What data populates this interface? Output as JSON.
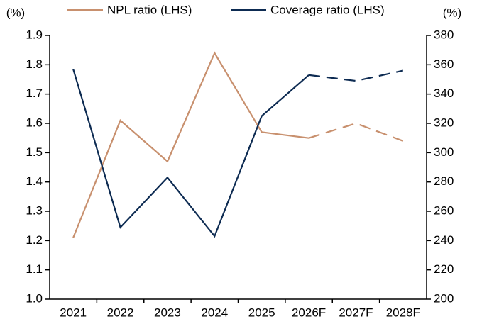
{
  "chart_data": {
    "type": "line",
    "y_label": "(%)",
    "y2_label": "(%)",
    "categories": [
      "2021",
      "2022",
      "2023",
      "2024",
      "2025",
      "2026F",
      "2027F",
      "2028F"
    ],
    "dash_start_index": 5,
    "series": [
      {
        "name": "NPL ratio (LHS)",
        "color": "#c8906e",
        "values": [
          1.21,
          1.61,
          1.47,
          1.84,
          1.57,
          1.55,
          1.6,
          1.54
        ]
      },
      {
        "name": "Coverage ratio (LHS)",
        "color": "#0d2b52",
        "axis": "y2",
        "values": [
          357,
          249,
          283,
          243,
          325,
          353,
          349,
          356
        ]
      }
    ],
    "ylim": [
      1.0,
      1.9
    ],
    "yticks": [
      {
        "value": 1.0,
        "label": "1.0"
      },
      1.1,
      1.2,
      1.3,
      1.4,
      1.5,
      1.6,
      1.7,
      1.8,
      1.9
    ],
    "y2lim": [
      200,
      380
    ],
    "y2ticks": [
      200,
      220,
      240,
      260,
      280,
      300,
      320,
      340,
      360,
      380
    ]
  }
}
